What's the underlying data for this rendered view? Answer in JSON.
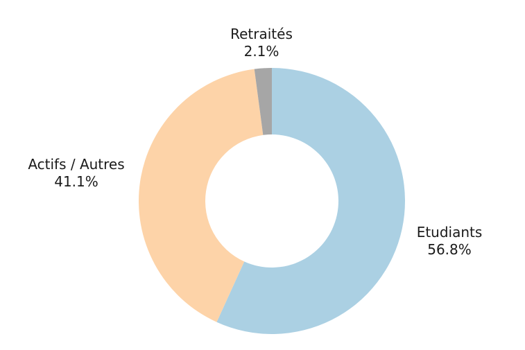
{
  "chart_data": {
    "type": "pie",
    "donut": true,
    "direction": "clockwise",
    "start": "top",
    "slices": [
      {
        "label": "Etudiants",
        "value": 56.8,
        "value_label": "56.8%",
        "color": "#abd0e3"
      },
      {
        "label": "Actifs / Autres",
        "value": 41.1,
        "value_label": "41.1%",
        "color": "#fdd3a8"
      },
      {
        "label": "Retraités",
        "value": 2.1,
        "value_label": "2.1%",
        "color": "#a6a6a6"
      }
    ]
  }
}
